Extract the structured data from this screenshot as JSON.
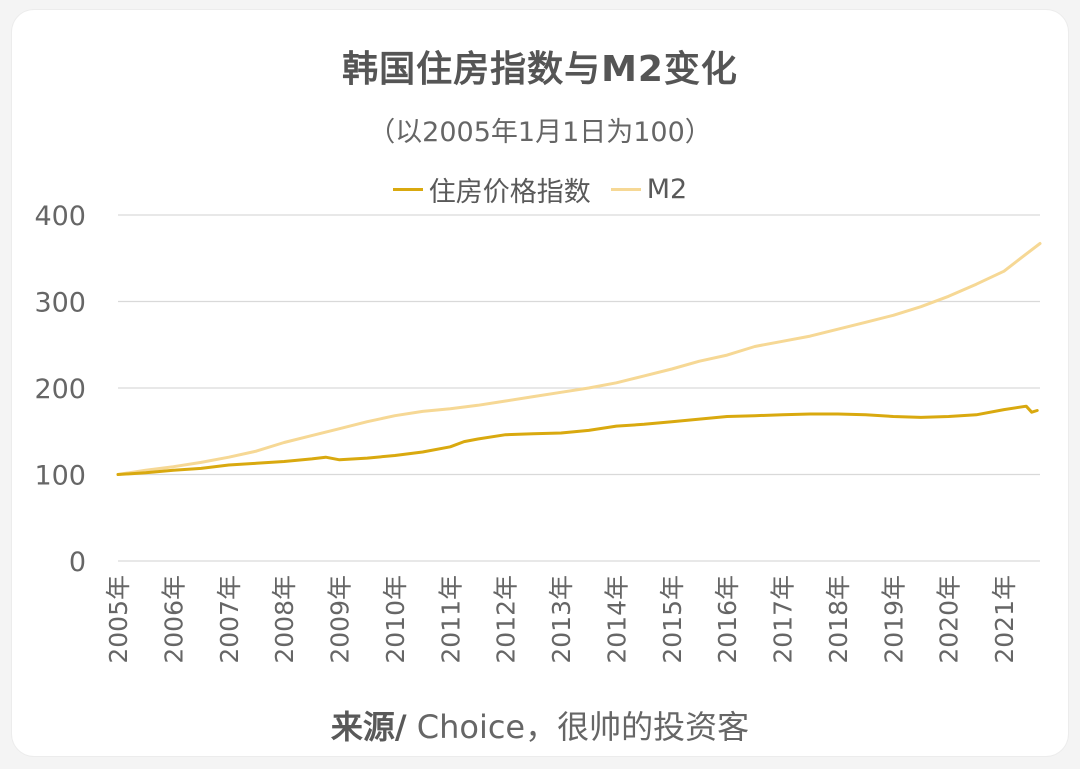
{
  "title": "韩国住房指数与M2变化",
  "subtitle": "（以2005年1月1日为100）",
  "source": {
    "label": "来源/",
    "text": " Choice，很帅的投资客"
  },
  "colors": {
    "housing": "#d9a90f",
    "m2": "#f6d895",
    "grid": "#d9d9d9",
    "text": "#595959"
  },
  "chart_data": {
    "type": "line",
    "title": "韩国住房指数与M2变化",
    "subtitle": "（以2005年1月1日为100）",
    "ylim": [
      0,
      400
    ],
    "yticks": [
      0,
      100,
      200,
      300,
      400
    ],
    "xlim": [
      2005,
      2021.65
    ],
    "categories": [
      "2005年",
      "2006年",
      "2007年",
      "2008年",
      "2009年",
      "2010年",
      "2011年",
      "2012年",
      "2013年",
      "2014年",
      "2015年",
      "2016年",
      "2017年",
      "2018年",
      "2019年",
      "2020年",
      "2021年"
    ],
    "grid": true,
    "legend_position": "top",
    "series": [
      {
        "name": "住房价格指数",
        "x": [
          2005.0,
          2005.5,
          2006.0,
          2006.5,
          2007.0,
          2007.5,
          2008.0,
          2008.5,
          2008.75,
          2009.0,
          2009.5,
          2010.0,
          2010.5,
          2011.0,
          2011.25,
          2011.5,
          2012.0,
          2012.5,
          2013.0,
          2013.5,
          2014.0,
          2014.5,
          2015.0,
          2015.5,
          2016.0,
          2016.5,
          2017.0,
          2017.5,
          2018.0,
          2018.5,
          2019.0,
          2019.5,
          2020.0,
          2020.5,
          2021.0,
          2021.4,
          2021.5,
          2021.6
        ],
        "values": [
          100,
          102,
          105,
          107,
          111,
          113,
          115,
          118,
          120,
          117,
          119,
          122,
          126,
          132,
          138,
          141,
          146,
          147,
          148,
          151,
          156,
          158,
          161,
          164,
          167,
          168,
          169,
          170,
          170,
          169,
          167,
          166,
          167,
          169,
          175,
          179,
          172,
          174
        ]
      },
      {
        "name": "M2",
        "x": [
          2005.0,
          2005.5,
          2006.0,
          2006.5,
          2007.0,
          2007.5,
          2008.0,
          2008.5,
          2009.0,
          2009.5,
          2010.0,
          2010.5,
          2011.0,
          2011.5,
          2012.0,
          2012.5,
          2013.0,
          2013.5,
          2014.0,
          2014.5,
          2015.0,
          2015.5,
          2016.0,
          2016.5,
          2017.0,
          2017.5,
          2018.0,
          2018.5,
          2019.0,
          2019.5,
          2020.0,
          2020.5,
          2021.0,
          2021.3,
          2021.65
        ],
        "values": [
          100,
          105,
          109,
          114,
          120,
          127,
          137,
          145,
          153,
          161,
          168,
          173,
          176,
          180,
          185,
          190,
          195,
          200,
          206,
          214,
          222,
          231,
          238,
          248,
          254,
          260,
          268,
          276,
          284,
          294,
          306,
          320,
          335,
          350,
          367
        ]
      }
    ]
  }
}
